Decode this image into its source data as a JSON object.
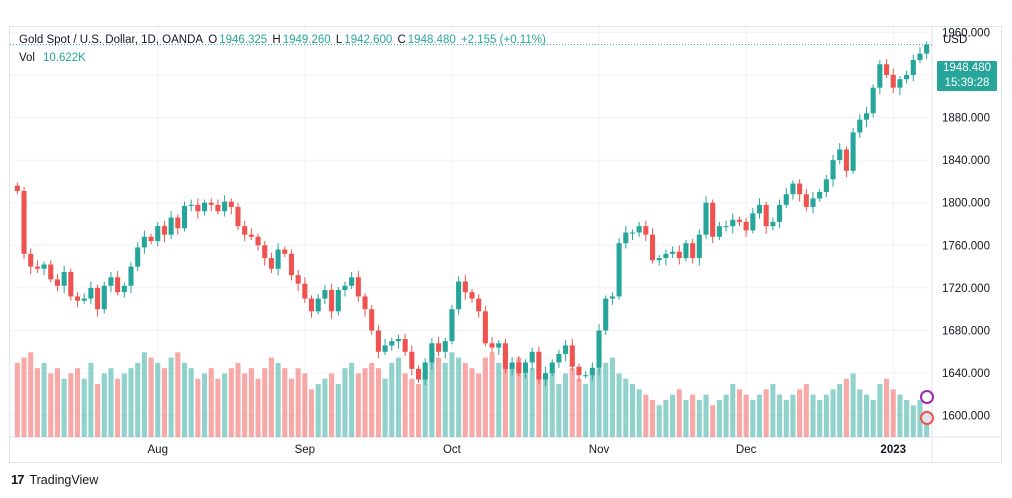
{
  "legend": {
    "symbol": "Gold Spot / U.S. Dollar, 1D, OANDA",
    "o_label": "O",
    "o": "1946.325",
    "h_label": "H",
    "h": "1949.260",
    "l_label": "L",
    "l": "1942.600",
    "c_label": "C",
    "c": "1948.480",
    "change": "+2.155 (+0.11%)",
    "vol_label": "Vol",
    "vol_value": "10.622K"
  },
  "price_tag": {
    "price": "1948.480",
    "countdown": "15:39:28"
  },
  "currency": "USD",
  "footer": {
    "brand": "TradingView"
  },
  "colors": {
    "up": "#26a69a",
    "down": "#ef5350",
    "grid": "#f0f3fa"
  },
  "chart_data": {
    "type": "candlestick",
    "y_axis_label": "USD",
    "ylim": [
      1580,
      1965
    ],
    "y_ticks": [
      "1600.000",
      "1640.000",
      "1680.000",
      "1720.000",
      "1760.000",
      "1800.000",
      "1840.000",
      "1880.000",
      "1920.000",
      "1960.000"
    ],
    "x_ticks": [
      "Aug",
      "Sep",
      "Oct",
      "Nov",
      "Dec",
      "2023"
    ],
    "x_tick_index": [
      21,
      43,
      65,
      87,
      109,
      131
    ],
    "last_close": 1948.48,
    "close": [
      1811,
      1752,
      1740,
      1738,
      1742,
      1728,
      1722,
      1735,
      1712,
      1708,
      1710,
      1720,
      1700,
      1722,
      1730,
      1716,
      1722,
      1740,
      1758,
      1768,
      1764,
      1778,
      1770,
      1786,
      1776,
      1797,
      1798,
      1792,
      1800,
      1798,
      1792,
      1801,
      1796,
      1778,
      1770,
      1768,
      1760,
      1748,
      1738,
      1756,
      1752,
      1732,
      1724,
      1710,
      1698,
      1710,
      1718,
      1698,
      1718,
      1722,
      1730,
      1712,
      1700,
      1680,
      1660,
      1666,
      1670,
      1672,
      1660,
      1644,
      1634,
      1650,
      1668,
      1660,
      1670,
      1700,
      1726,
      1716,
      1710,
      1698,
      1668,
      1664,
      1668,
      1644,
      1650,
      1640,
      1650,
      1660,
      1634,
      1640,
      1650,
      1658,
      1666,
      1646,
      1638,
      1638,
      1645,
      1680,
      1710,
      1712,
      1762,
      1772,
      1772,
      1778,
      1770,
      1746,
      1748,
      1752,
      1754,
      1748,
      1762,
      1748,
      1770,
      1800,
      1768,
      1778,
      1778,
      1784,
      1782,
      1774,
      1790,
      1798,
      1778,
      1782,
      1798,
      1808,
      1818,
      1808,
      1796,
      1804,
      1810,
      1822,
      1840,
      1850,
      1830,
      1866,
      1878,
      1884,
      1908,
      1930,
      1920,
      1908,
      1916,
      1920,
      1934,
      1940,
      1948.48
    ],
    "volume": [
      28,
      30,
      32,
      26,
      28,
      24,
      26,
      22,
      24,
      26,
      22,
      28,
      20,
      24,
      26,
      22,
      24,
      26,
      28,
      32,
      30,
      28,
      26,
      30,
      32,
      28,
      26,
      22,
      24,
      26,
      22,
      24,
      26,
      28,
      24,
      26,
      22,
      26,
      30,
      28,
      26,
      22,
      26,
      24,
      18,
      20,
      22,
      24,
      20,
      26,
      28,
      24,
      26,
      28,
      26,
      22,
      28,
      30,
      24,
      22,
      20,
      24,
      34,
      30,
      28,
      32,
      30,
      28,
      26,
      24,
      30,
      32,
      28,
      26,
      28,
      30,
      24,
      26,
      22,
      24,
      26,
      20,
      24,
      26,
      22,
      20,
      24,
      26,
      28,
      30,
      24,
      22,
      20,
      18,
      16,
      14,
      12,
      14,
      16,
      18,
      14,
      16,
      14,
      16,
      12,
      14,
      16,
      20,
      18,
      16,
      14,
      16,
      18,
      20,
      16,
      14,
      16,
      18,
      20,
      16,
      14,
      16,
      18,
      20,
      22,
      24,
      18,
      16,
      14,
      20,
      22,
      18,
      16,
      14,
      12,
      14,
      10
    ]
  }
}
